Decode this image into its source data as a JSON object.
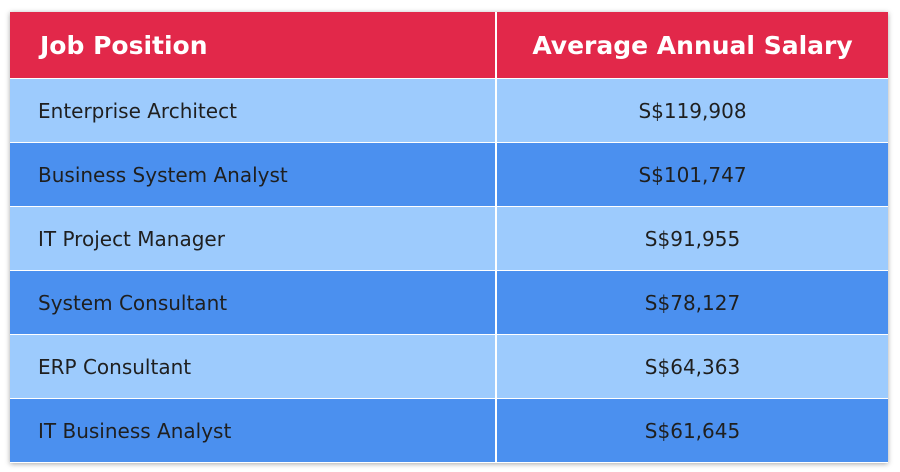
{
  "table": {
    "header": [
      "Job Position",
      "Average Annual Salary"
    ],
    "rows": [
      [
        "Enterprise Architect",
        "S$119,908"
      ],
      [
        "Business System Analyst",
        "S$101,747"
      ],
      [
        "IT Project Manager",
        "S$91,955"
      ],
      [
        "System Consultant",
        "S$78,127"
      ],
      [
        "ERP Consultant",
        "S$64,363"
      ],
      [
        "IT Business Analyst",
        "S$61,645"
      ]
    ]
  }
}
